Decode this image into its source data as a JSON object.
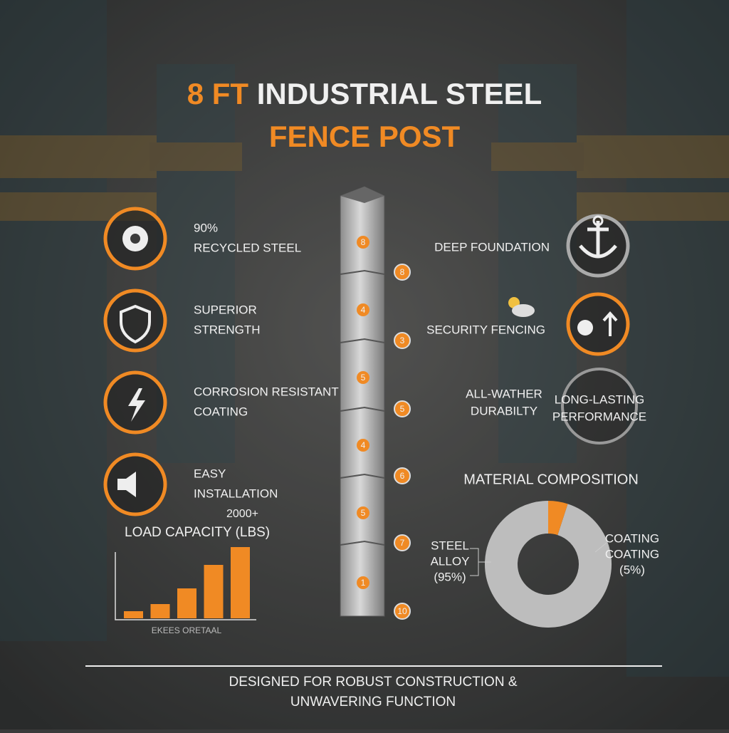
{
  "header": {
    "title_highlight": "8 FT",
    "title_main": "INDUSTRIAL STEEL",
    "title_line2": "FENCE POST"
  },
  "features_left": [
    {
      "lines": [
        "90%",
        "RECYCLED STEEL"
      ]
    },
    {
      "lines": [
        "SUPERIOR",
        "STRENGTH"
      ]
    },
    {
      "lines": [
        "CORROSION RESISTANT",
        "COATING"
      ]
    },
    {
      "lines": [
        "EASY",
        "INSTALLATION"
      ]
    }
  ],
  "features_right": [
    {
      "lines": [
        "DEEP FOUNDATION"
      ]
    },
    {
      "lines": [
        "SECURITY FENCING"
      ]
    },
    {
      "lines": [
        "ALL-WATHER",
        "DURABILTY"
      ]
    }
  ],
  "badge": {
    "lines": [
      "LONG-LASTING",
      "PERFORMANCE"
    ]
  },
  "post": {
    "segment_labels": [
      "8",
      "4",
      "5",
      "4",
      "5",
      "1"
    ],
    "markers": [
      "8",
      "3",
      "5",
      "6",
      "7",
      "10"
    ]
  },
  "load_capacity": {
    "title": "LOAD CAPACITY (LBS)",
    "value_label": "2000+",
    "values": [
      10,
      20,
      42,
      75,
      100
    ],
    "caption": "EKEES ORETAAL"
  },
  "composition": {
    "title": "MATERIAL COMPOSITION",
    "segments": [
      {
        "lines": [
          "STEEL",
          "ALLOY",
          "(95%)"
        ],
        "value": 95
      },
      {
        "lines": [
          "COATING",
          "COATING",
          "(5%)"
        ],
        "value": 5
      }
    ]
  },
  "footer": {
    "lines": [
      "DESIGNED FOR ROBUST CONSTRUCTION &",
      "UNWAVERING FUNCTION"
    ]
  }
}
